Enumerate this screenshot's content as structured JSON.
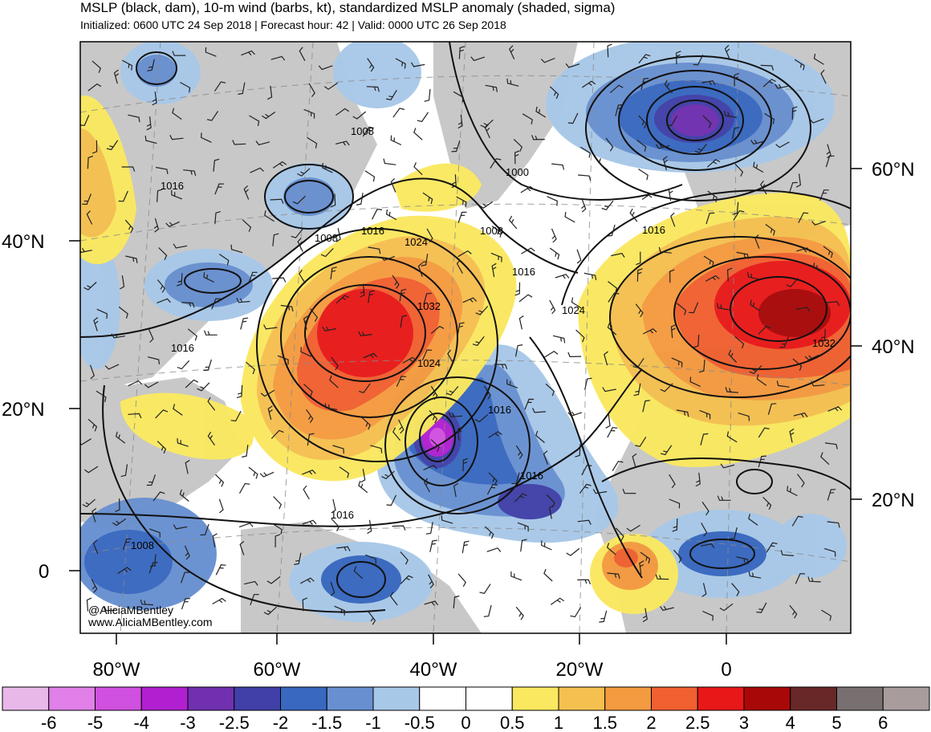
{
  "header": {
    "title": "MSLP (black, dam), 10-m wind (barbs, kt), standardized MSLP anomaly (shaded, sigma)",
    "subtitle": "Initialized: 0600 UTC 24 Sep 2018 | Forecast hour: 42 | Valid: 0000 UTC 26 Sep 2018"
  },
  "axes": {
    "left_lat": [
      "40°N",
      "20°N",
      "0"
    ],
    "right_lat": [
      "60°N",
      "40°N",
      "20°N"
    ],
    "bottom_lon": [
      "80°W",
      "60°W",
      "40°W",
      "20°W",
      "0"
    ]
  },
  "isobar_labels": [
    "1008",
    "1000",
    "1016",
    "1008",
    "1016",
    "1024",
    "1008",
    "1016",
    "1016",
    "1032",
    "1024",
    "1016",
    "1024",
    "1032",
    "1016",
    "1016",
    "1016",
    "1008"
  ],
  "credits": {
    "handle": "@AliciaMBentley",
    "site": "www.AliciaMBentley.com"
  },
  "colorbar": {
    "labels": [
      "-6",
      "-5",
      "-4",
      "-3",
      "-2.5",
      "-2",
      "-1.5",
      "-1",
      "-0.5",
      "0",
      "0.5",
      "1",
      "1.5",
      "2",
      "2.5",
      "3",
      "4",
      "5",
      "6"
    ],
    "colors": [
      "#e8b8e8",
      "#e080e8",
      "#d050e0",
      "#b020d0",
      "#7030b0",
      "#4040a8",
      "#3868c0",
      "#6890d0",
      "#a8c8e8",
      "#ffffff",
      "#ffffff",
      "#fae860",
      "#f5c050",
      "#f49a40",
      "#f06030",
      "#e81818",
      "#a80808",
      "#682828",
      "#787070",
      "#a89c9c"
    ]
  },
  "colors": {
    "land": "#c8c8c8",
    "ocean_neutral": "#ffffff"
  }
}
